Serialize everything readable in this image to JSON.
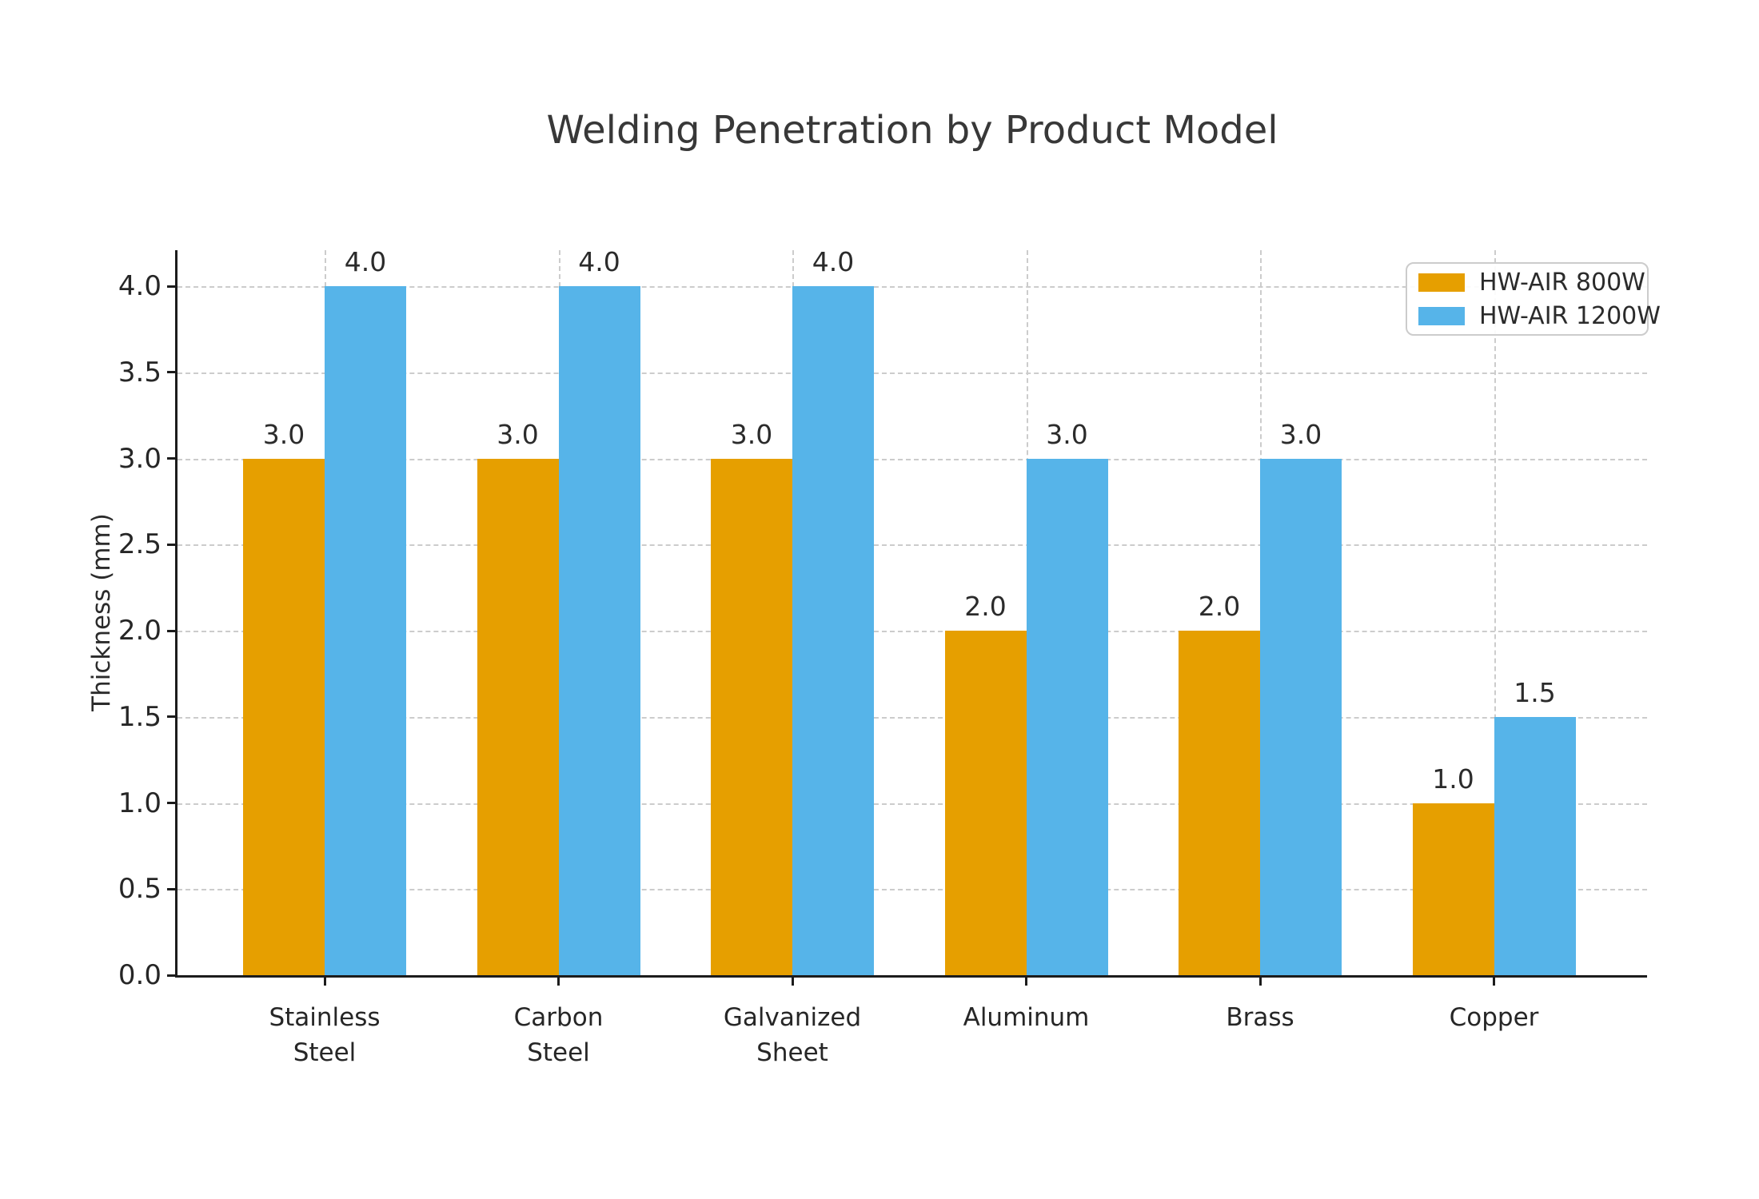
{
  "title": "Welding Penetration by Product Model",
  "chart_data": {
    "type": "bar",
    "title": "Welding Penetration by Product Model",
    "xlabel": "",
    "ylabel": "Thickness (mm)",
    "categories": [
      "Stainless\nSteel",
      "Carbon\nSteel",
      "Galvanized\nSheet",
      "Aluminum",
      "Brass",
      "Copper"
    ],
    "series": [
      {
        "name": "HW-AIR 800W",
        "color": "#E69F00",
        "values": [
          3.0,
          3.0,
          3.0,
          2.0,
          2.0,
          1.0
        ]
      },
      {
        "name": "HW-AIR 1200W",
        "color": "#56B4E9",
        "values": [
          4.0,
          4.0,
          4.0,
          3.0,
          3.0,
          1.5
        ]
      }
    ],
    "yticks": [
      0.0,
      0.5,
      1.0,
      1.5,
      2.0,
      2.5,
      3.0,
      3.5,
      4.0
    ],
    "ylim": [
      0,
      4.21
    ],
    "grid": "both-dashed",
    "bar_value_labels": true,
    "legend_position": "upper right",
    "colors": {
      "grid": "#cccccc",
      "spine": "#1c1c1c",
      "text": "#2b2b2b"
    }
  }
}
